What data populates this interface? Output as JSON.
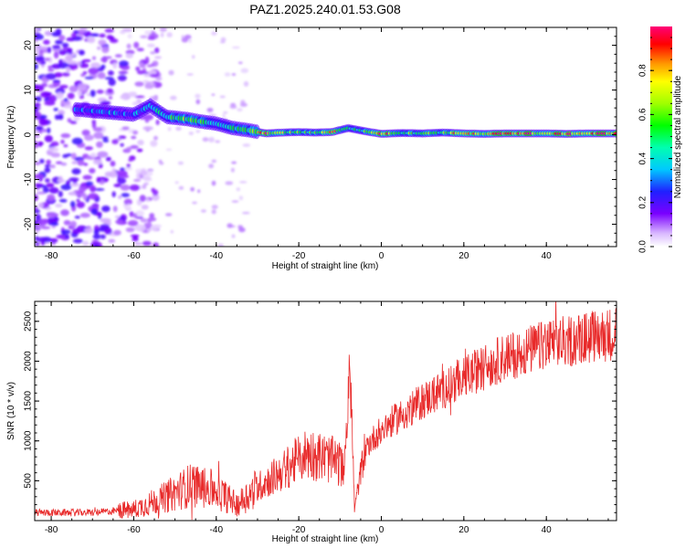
{
  "figure": {
    "title": "PAZ1.2025.240.01.53.G08"
  },
  "chart_data": [
    {
      "type": "heatmap",
      "xlabel": "Height of straight line (km)",
      "ylabel": "Frequency (Hz)",
      "xlim": [
        -84,
        57
      ],
      "ylim": [
        -25,
        24
      ],
      "xticks": [
        -80,
        -60,
        -40,
        -20,
        0,
        20,
        40
      ],
      "yticks": [
        -20,
        -10,
        0,
        10,
        20
      ],
      "colorbar": {
        "label": "Normalized spectral amplitude",
        "range": [
          0,
          1
        ],
        "ticks": [
          0.0,
          0.2,
          0.4,
          0.6,
          0.8
        ]
      },
      "ridge": [
        {
          "x": -72,
          "f": 5.5,
          "a": 0.3
        },
        {
          "x": -66,
          "f": 5.0,
          "a": 0.35
        },
        {
          "x": -60,
          "f": 4.5,
          "a": 0.3
        },
        {
          "x": -56,
          "f": 6.5,
          "a": 0.4
        },
        {
          "x": -52,
          "f": 4.0,
          "a": 0.45
        },
        {
          "x": -47,
          "f": 3.5,
          "a": 0.55
        },
        {
          "x": -44,
          "f": 3.0,
          "a": 0.5
        },
        {
          "x": -40,
          "f": 2.5,
          "a": 0.45
        },
        {
          "x": -36,
          "f": 1.5,
          "a": 0.45
        },
        {
          "x": -32,
          "f": 1.0,
          "a": 0.5
        },
        {
          "x": -28,
          "f": 0.3,
          "a": 0.85
        },
        {
          "x": -24,
          "f": 0.5,
          "a": 0.6
        },
        {
          "x": -20,
          "f": 0.6,
          "a": 0.55
        },
        {
          "x": -16,
          "f": 0.5,
          "a": 0.5
        },
        {
          "x": -12,
          "f": 0.6,
          "a": 0.85
        },
        {
          "x": -8,
          "f": 1.5,
          "a": 0.45
        },
        {
          "x": -4,
          "f": 0.8,
          "a": 0.5
        },
        {
          "x": 0,
          "f": 0.2,
          "a": 0.9
        },
        {
          "x": 5,
          "f": 0.4,
          "a": 0.55
        },
        {
          "x": 10,
          "f": 0.3,
          "a": 0.6
        },
        {
          "x": 15,
          "f": 0.5,
          "a": 0.55
        },
        {
          "x": 20,
          "f": 0.3,
          "a": 0.85
        },
        {
          "x": 25,
          "f": 0.2,
          "a": 0.6
        },
        {
          "x": 30,
          "f": 0.3,
          "a": 0.95
        },
        {
          "x": 35,
          "f": 0.3,
          "a": 0.9
        },
        {
          "x": 40,
          "f": 0.3,
          "a": 0.65
        },
        {
          "x": 45,
          "f": 0.2,
          "a": 0.9
        },
        {
          "x": 50,
          "f": 0.3,
          "a": 0.75
        },
        {
          "x": 55,
          "f": 0.3,
          "a": 0.9
        }
      ]
    },
    {
      "type": "line",
      "xlabel": "Height of straight line (km)",
      "ylabel": "SNR (10 * v/v)",
      "xlim": [
        -84,
        57
      ],
      "ylim": [
        0,
        2750
      ],
      "xticks": [
        -80,
        -60,
        -40,
        -20,
        0,
        20,
        40
      ],
      "yticks": [
        500,
        1000,
        1500,
        2000,
        2500
      ],
      "color": "#e82a2a",
      "trend": [
        {
          "x": -84,
          "y": 100
        },
        {
          "x": -70,
          "y": 100
        },
        {
          "x": -60,
          "y": 140
        },
        {
          "x": -52,
          "y": 300
        },
        {
          "x": -46,
          "y": 450
        },
        {
          "x": -40,
          "y": 380
        },
        {
          "x": -35,
          "y": 200
        },
        {
          "x": -30,
          "y": 420
        },
        {
          "x": -24,
          "y": 620
        },
        {
          "x": -18,
          "y": 850
        },
        {
          "x": -12,
          "y": 760
        },
        {
          "x": -9,
          "y": 680
        },
        {
          "x": -7.5,
          "y": 1900
        },
        {
          "x": -6.5,
          "y": 150
        },
        {
          "x": -4,
          "y": 900
        },
        {
          "x": 0,
          "y": 1150
        },
        {
          "x": 10,
          "y": 1500
        },
        {
          "x": 20,
          "y": 1800
        },
        {
          "x": 30,
          "y": 2050
        },
        {
          "x": 40,
          "y": 2200
        },
        {
          "x": 50,
          "y": 2300
        },
        {
          "x": 57,
          "y": 2350
        }
      ]
    }
  ]
}
